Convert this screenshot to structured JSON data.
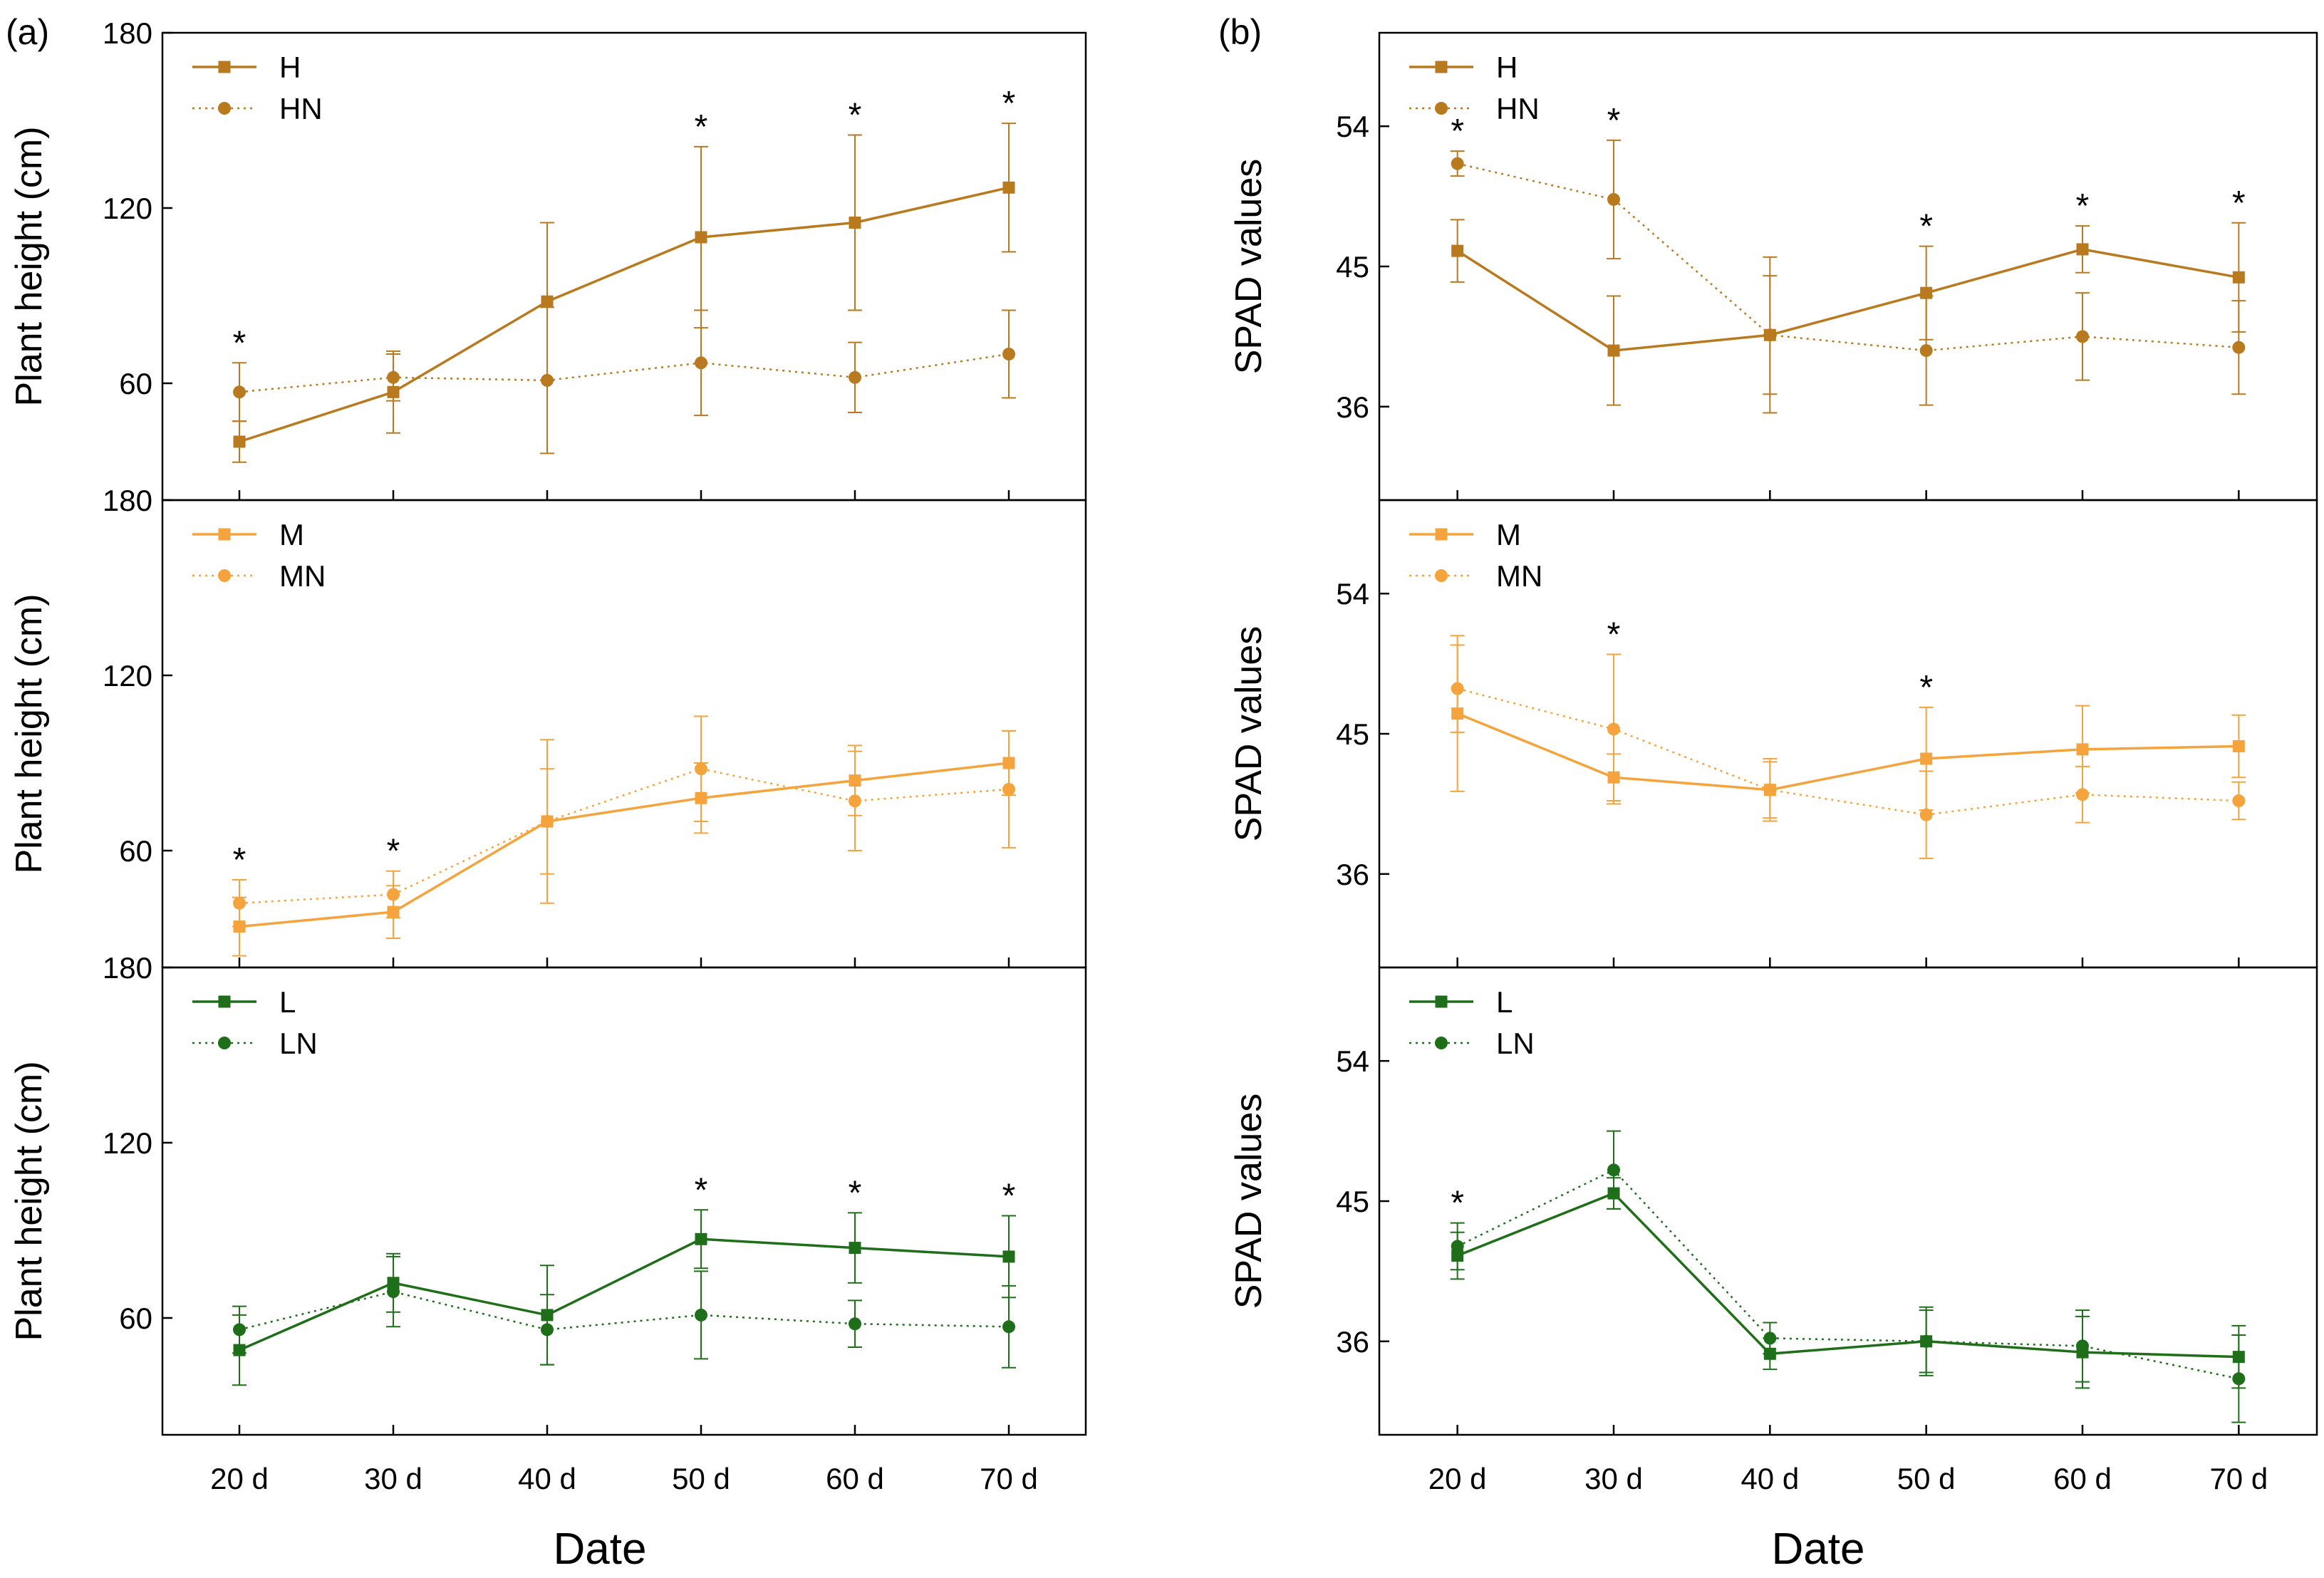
{
  "figure": {
    "x_title": "Date",
    "panel_labels": [
      "(a)",
      "(b)"
    ]
  },
  "chart_data": [
    {
      "type": "line",
      "panel": "(a)",
      "row": 0,
      "ylabel": "Plant height (cm)",
      "ylim": [
        20,
        180
      ],
      "yticks": [
        "60",
        "120",
        "180"
      ],
      "categories": [
        "20 d",
        "30 d",
        "40 d",
        "50 d",
        "60 d",
        "70 d"
      ],
      "x": [
        20,
        30,
        40,
        50,
        60,
        70
      ],
      "color": "#b97a1f",
      "series": [
        {
          "name": "H",
          "style": "solid",
          "marker": "square",
          "values": [
            40,
            57,
            88,
            110,
            115,
            127
          ],
          "errors": [
            7,
            14,
            27,
            31,
            30,
            22
          ]
        },
        {
          "name": "HN",
          "style": "dotted",
          "marker": "circle",
          "values": [
            57,
            62,
            61,
            67,
            62,
            70
          ],
          "errors": [
            10,
            8,
            25,
            18,
            12,
            15
          ]
        }
      ],
      "stars": [
        20,
        50,
        60,
        70
      ]
    },
    {
      "type": "line",
      "panel": "(a)",
      "row": 1,
      "ylabel": "Plant height (cm)",
      "ylim": [
        20,
        180
      ],
      "yticks": [
        "60",
        "120",
        "180"
      ],
      "categories": [
        "20 d",
        "30 d",
        "40 d",
        "50 d",
        "60 d",
        "70 d"
      ],
      "x": [
        20,
        30,
        40,
        50,
        60,
        70
      ],
      "color": "#f5a33c",
      "series": [
        {
          "name": "M",
          "style": "solid",
          "marker": "square",
          "values": [
            34,
            39,
            70,
            78,
            84,
            90
          ],
          "errors": [
            10,
            9,
            28,
            12,
            12,
            11
          ]
        },
        {
          "name": "MN",
          "style": "dotted",
          "marker": "circle",
          "values": [
            42,
            45,
            70,
            88,
            77,
            81
          ],
          "errors": [
            8,
            8,
            18,
            18,
            17,
            20
          ]
        }
      ],
      "stars": [
        20,
        30
      ]
    },
    {
      "type": "line",
      "panel": "(a)",
      "row": 2,
      "ylabel": "Plant height (cm)",
      "ylim": [
        20,
        180
      ],
      "yticks": [
        "60",
        "120",
        "180"
      ],
      "categories": [
        "20 d",
        "30 d",
        "40 d",
        "50 d",
        "60 d",
        "70 d"
      ],
      "x": [
        20,
        30,
        40,
        50,
        60,
        70
      ],
      "color": "#1f6e1a",
      "series": [
        {
          "name": "L",
          "style": "solid",
          "marker": "square",
          "values": [
            49,
            72,
            61,
            87,
            84,
            81
          ],
          "errors": [
            12,
            10,
            17,
            10,
            12,
            14
          ]
        },
        {
          "name": "LN",
          "style": "dotted",
          "marker": "circle",
          "values": [
            56,
            69,
            56,
            61,
            58,
            57
          ],
          "errors": [
            8,
            12,
            12,
            15,
            8,
            14
          ]
        }
      ],
      "stars": [
        50,
        60,
        70
      ]
    },
    {
      "type": "line",
      "panel": "(b)",
      "row": 0,
      "ylabel": "SPAD values",
      "ylim": [
        30,
        60
      ],
      "yticks": [
        "36",
        "45",
        "54"
      ],
      "categories": [
        "20 d",
        "30 d",
        "40 d",
        "50 d",
        "60 d",
        "70 d"
      ],
      "x": [
        20,
        30,
        40,
        50,
        60,
        70
      ],
      "color": "#b97a1f",
      "series": [
        {
          "name": "H",
          "style": "solid",
          "marker": "square",
          "values": [
            46,
            39.6,
            40.6,
            43.3,
            46.1,
            44.3
          ],
          "errors": [
            2,
            3.5,
            5,
            3,
            1.5,
            3.5
          ]
        },
        {
          "name": "HN",
          "style": "dotted",
          "marker": "circle",
          "values": [
            51.6,
            49.3,
            40.6,
            39.6,
            40.5,
            39.8
          ],
          "errors": [
            0.8,
            3.8,
            3.8,
            3.5,
            2.8,
            3
          ]
        }
      ],
      "stars": [
        20,
        30,
        50,
        60,
        70
      ]
    },
    {
      "type": "line",
      "panel": "(b)",
      "row": 1,
      "ylabel": "SPAD values",
      "ylim": [
        30,
        60
      ],
      "yticks": [
        "36",
        "45",
        "54"
      ],
      "categories": [
        "20 d",
        "30 d",
        "40 d",
        "50 d",
        "60 d",
        "70 d"
      ],
      "x": [
        20,
        30,
        40,
        50,
        60,
        70
      ],
      "color": "#f5a33c",
      "series": [
        {
          "name": "M",
          "style": "solid",
          "marker": "square",
          "values": [
            46.3,
            42.2,
            41.4,
            43.4,
            44.0,
            44.2
          ],
          "errors": [
            5,
            1.5,
            2,
            3.3,
            2.8,
            2
          ]
        },
        {
          "name": "MN",
          "style": "dotted",
          "marker": "circle",
          "values": [
            47.9,
            45.3,
            41.4,
            39.8,
            41.1,
            40.7
          ],
          "errors": [
            2.8,
            4.8,
            1.8,
            2.8,
            1.8,
            1.2
          ]
        }
      ],
      "stars": [
        30,
        50
      ]
    },
    {
      "type": "line",
      "panel": "(b)",
      "row": 2,
      "ylabel": "SPAD values",
      "ylim": [
        30,
        60
      ],
      "yticks": [
        "36",
        "45",
        "54"
      ],
      "categories": [
        "20 d",
        "30 d",
        "40 d",
        "50 d",
        "60 d",
        "70 d"
      ],
      "x": [
        20,
        30,
        40,
        50,
        60,
        70
      ],
      "color": "#1f6e1a",
      "series": [
        {
          "name": "L",
          "style": "solid",
          "marker": "square",
          "values": [
            41.5,
            45.5,
            35.2,
            36.0,
            35.3,
            35.0
          ],
          "errors": [
            1.5,
            1,
            1,
            2.2,
            2.3,
            2
          ]
        },
        {
          "name": "LN",
          "style": "dotted",
          "marker": "circle",
          "values": [
            42.1,
            47.0,
            36.2,
            36.0,
            35.7,
            33.6
          ],
          "errors": [
            1.5,
            2.5,
            1,
            2,
            2.3,
            2.8
          ]
        }
      ],
      "stars": [
        20
      ]
    }
  ]
}
